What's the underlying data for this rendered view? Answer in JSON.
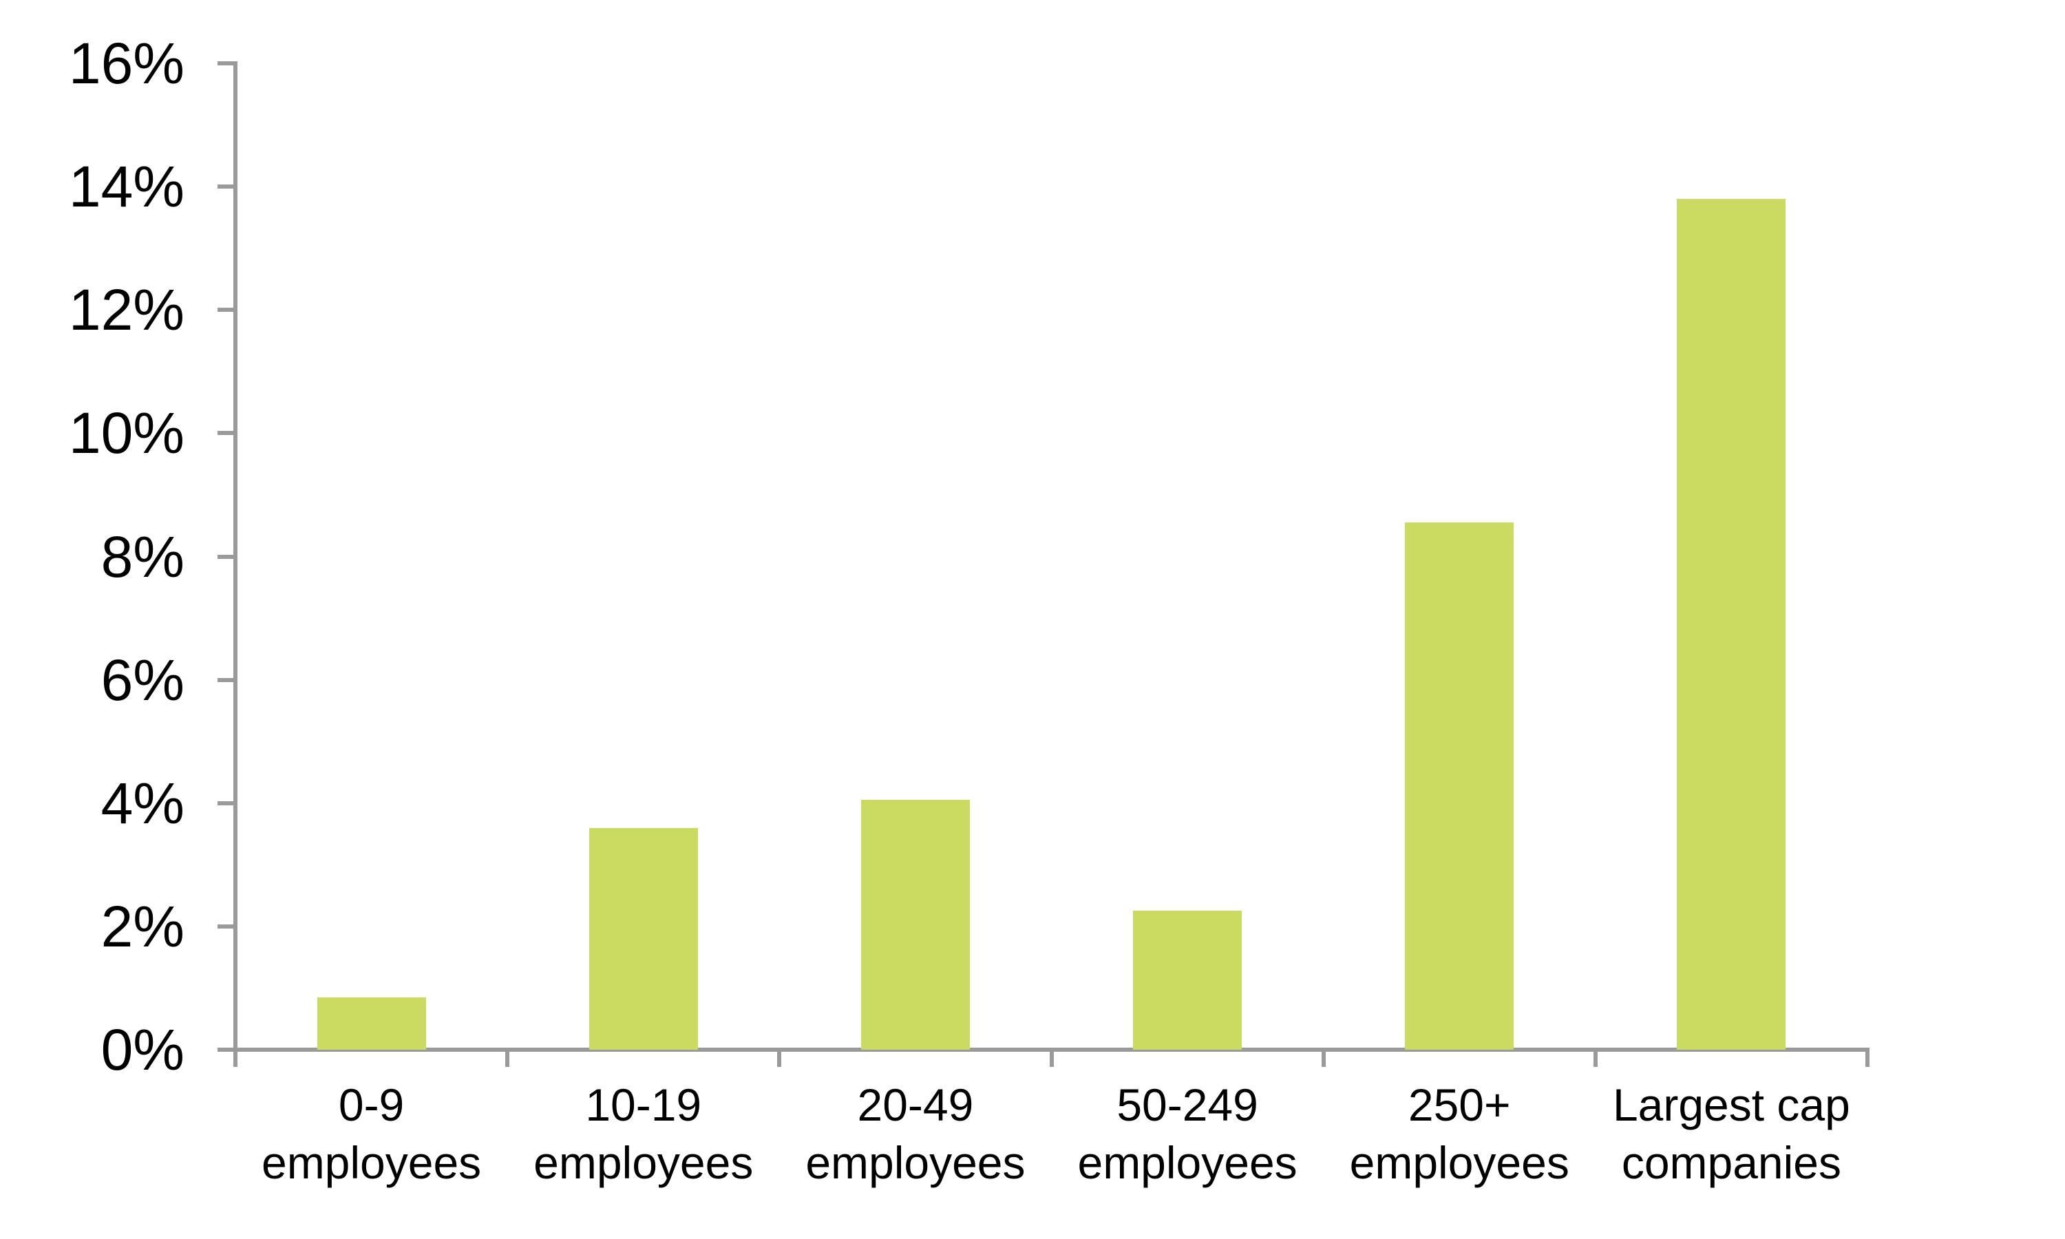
{
  "chart_data": {
    "type": "bar",
    "title": "",
    "xlabel": "",
    "ylabel": "",
    "categories": [
      "0-9\nemployees",
      "10-19\nemployees",
      "20-49\nemployees",
      "50-249\nemployees",
      "250+\nemployees",
      "Largest cap\ncompanies"
    ],
    "values": [
      0.85,
      3.6,
      4.05,
      2.25,
      8.55,
      13.8
    ],
    "value_unit": "%",
    "ylim": [
      0,
      16
    ],
    "ytick_step": 2,
    "ytick_labels": [
      "0%",
      "2%",
      "4%",
      "6%",
      "8%",
      "10%",
      "12%",
      "14%",
      "16%"
    ],
    "grid": false,
    "legend": "none",
    "bar_color": "#cbdb62",
    "axis_color": "#9a9a9a",
    "text_color": "#000000"
  }
}
